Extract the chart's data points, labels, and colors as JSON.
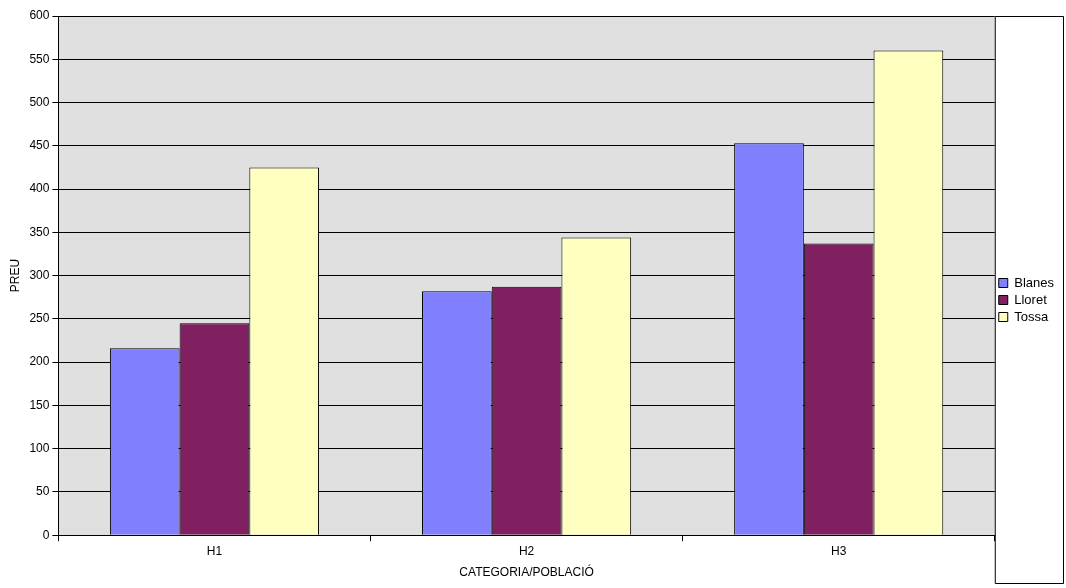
{
  "chart_data": {
    "type": "bar",
    "xlabel": "CATEGORIA/POBLACIÓ",
    "ylabel": "PREU",
    "categories": [
      "H1",
      "H2",
      "H3"
    ],
    "series": [
      {
        "name": "Blanes",
        "color": "#8080ff",
        "values": [
          216,
          282,
          453
        ]
      },
      {
        "name": "Lloret",
        "color": "#802060",
        "values": [
          245,
          287,
          337
        ]
      },
      {
        "name": "Tossa",
        "color": "#ffffc0",
        "values": [
          425,
          344,
          560
        ]
      }
    ],
    "ylim": [
      0,
      600
    ],
    "yticks": [
      0,
      50,
      100,
      150,
      200,
      250,
      300,
      350,
      400,
      450,
      500,
      550,
      600
    ],
    "grid": "y",
    "legend": "right"
  }
}
